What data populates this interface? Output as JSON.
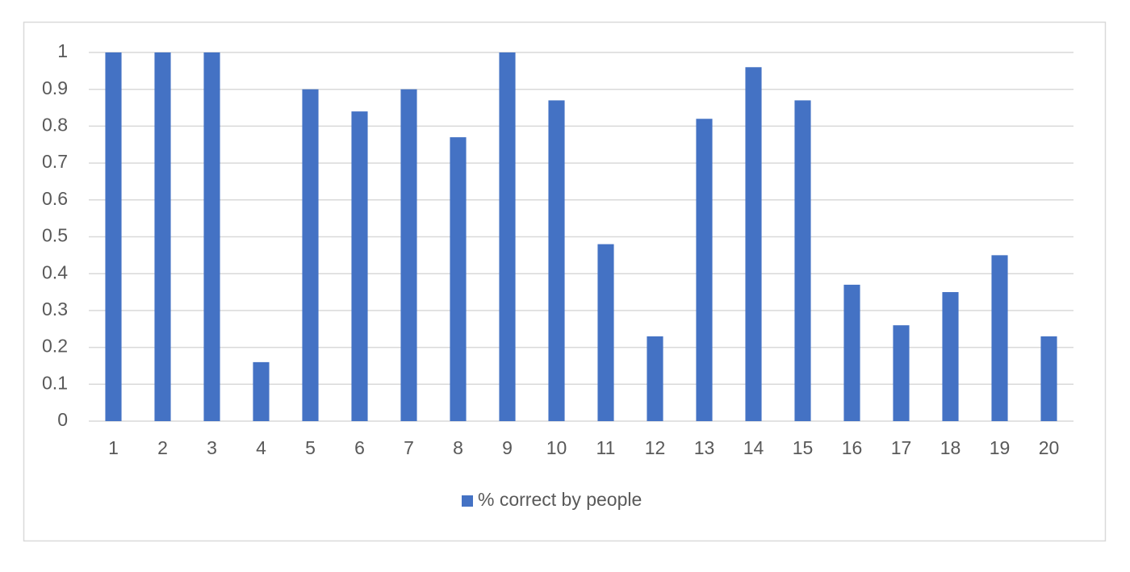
{
  "chart_data": {
    "type": "bar",
    "categories": [
      "1",
      "2",
      "3",
      "4",
      "5",
      "6",
      "7",
      "8",
      "9",
      "10",
      "11",
      "12",
      "13",
      "14",
      "15",
      "16",
      "17",
      "18",
      "19",
      "20"
    ],
    "series": [
      {
        "name": "% correct by people",
        "color": "#4472c4",
        "values": [
          1,
          1,
          1,
          0.16,
          0.9,
          0.84,
          0.9,
          0.77,
          1,
          0.87,
          0.48,
          0.23,
          0.82,
          0.96,
          0.87,
          0.37,
          0.26,
          0.35,
          0.45,
          0.23
        ]
      }
    ],
    "ylim": [
      0,
      1
    ],
    "yticks": [
      0,
      0.1,
      0.2,
      0.3,
      0.4,
      0.5,
      0.6,
      0.7,
      0.8,
      0.9,
      1
    ],
    "grid": true,
    "legend": "bottom"
  }
}
